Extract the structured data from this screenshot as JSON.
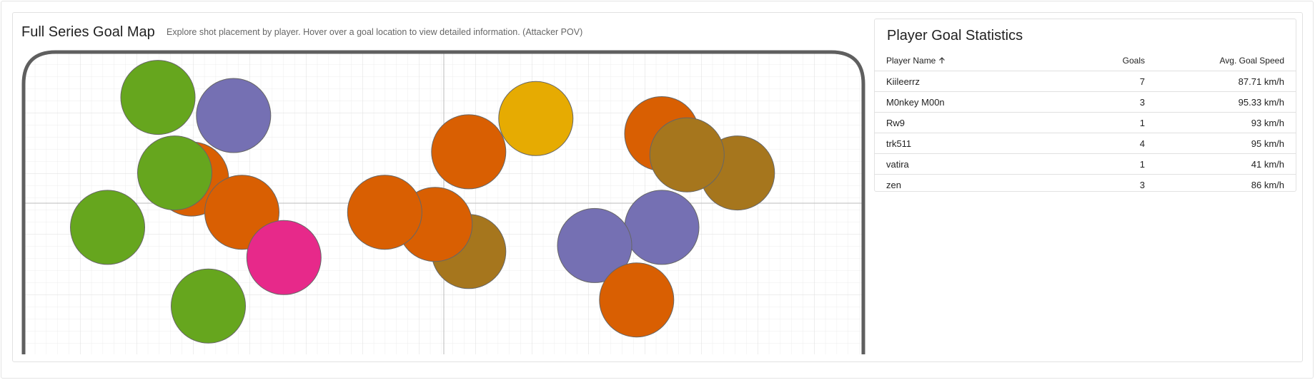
{
  "map": {
    "title": "Full Series Goal Map",
    "subtitle": "Explore shot placement by player. Hover over a goal location to view detailed information. (Attacker POV)"
  },
  "stats": {
    "title": "Player Goal Statistics",
    "headers": {
      "name": "Player Name",
      "goals": "Goals",
      "speed": "Avg. Goal Speed"
    },
    "sort_icon": "arrow-up-icon",
    "rows": [
      {
        "name": "Kiileerrz",
        "goals": "7",
        "speed": "87.71 km/h"
      },
      {
        "name": "M0nkey M00n",
        "goals": "3",
        "speed": "95.33 km/h"
      },
      {
        "name": "Rw9",
        "goals": "1",
        "speed": "93 km/h"
      },
      {
        "name": "trk511",
        "goals": "4",
        "speed": "95 km/h"
      },
      {
        "name": "vatira",
        "goals": "1",
        "speed": "41 km/h"
      },
      {
        "name": "zen",
        "goals": "3",
        "speed": "86 km/h"
      }
    ]
  },
  "colors": {
    "green": "#66a61e",
    "purple": "#7570b3",
    "orange": "#d95f02",
    "pink": "#e7298a",
    "gold": "#e6ab02",
    "brown": "#a6761d"
  },
  "chart_data": {
    "type": "scatter",
    "x_range": [
      0,
      1
    ],
    "y_range": [
      0,
      1
    ],
    "points": [
      {
        "x": 0.16,
        "y": 0.85,
        "color": "#66a61e"
      },
      {
        "x": 0.25,
        "y": 0.79,
        "color": "#7570b3"
      },
      {
        "x": 0.2,
        "y": 0.58,
        "color": "#d95f02"
      },
      {
        "x": 0.26,
        "y": 0.47,
        "color": "#d95f02"
      },
      {
        "x": 0.18,
        "y": 0.6,
        "color": "#66a61e"
      },
      {
        "x": 0.1,
        "y": 0.42,
        "color": "#66a61e"
      },
      {
        "x": 0.31,
        "y": 0.32,
        "color": "#e7298a"
      },
      {
        "x": 0.22,
        "y": 0.16,
        "color": "#66a61e"
      },
      {
        "x": 0.53,
        "y": 0.34,
        "color": "#a6761d"
      },
      {
        "x": 0.49,
        "y": 0.43,
        "color": "#d95f02"
      },
      {
        "x": 0.43,
        "y": 0.47,
        "color": "#d95f02"
      },
      {
        "x": 0.53,
        "y": 0.67,
        "color": "#d95f02"
      },
      {
        "x": 0.61,
        "y": 0.78,
        "color": "#e6ab02"
      },
      {
        "x": 0.76,
        "y": 0.73,
        "color": "#d95f02"
      },
      {
        "x": 0.85,
        "y": 0.6,
        "color": "#a6761d"
      },
      {
        "x": 0.79,
        "y": 0.66,
        "color": "#a6761d"
      },
      {
        "x": 0.76,
        "y": 0.42,
        "color": "#7570b3"
      },
      {
        "x": 0.68,
        "y": 0.36,
        "color": "#7570b3"
      },
      {
        "x": 0.73,
        "y": 0.18,
        "color": "#d95f02"
      }
    ]
  }
}
